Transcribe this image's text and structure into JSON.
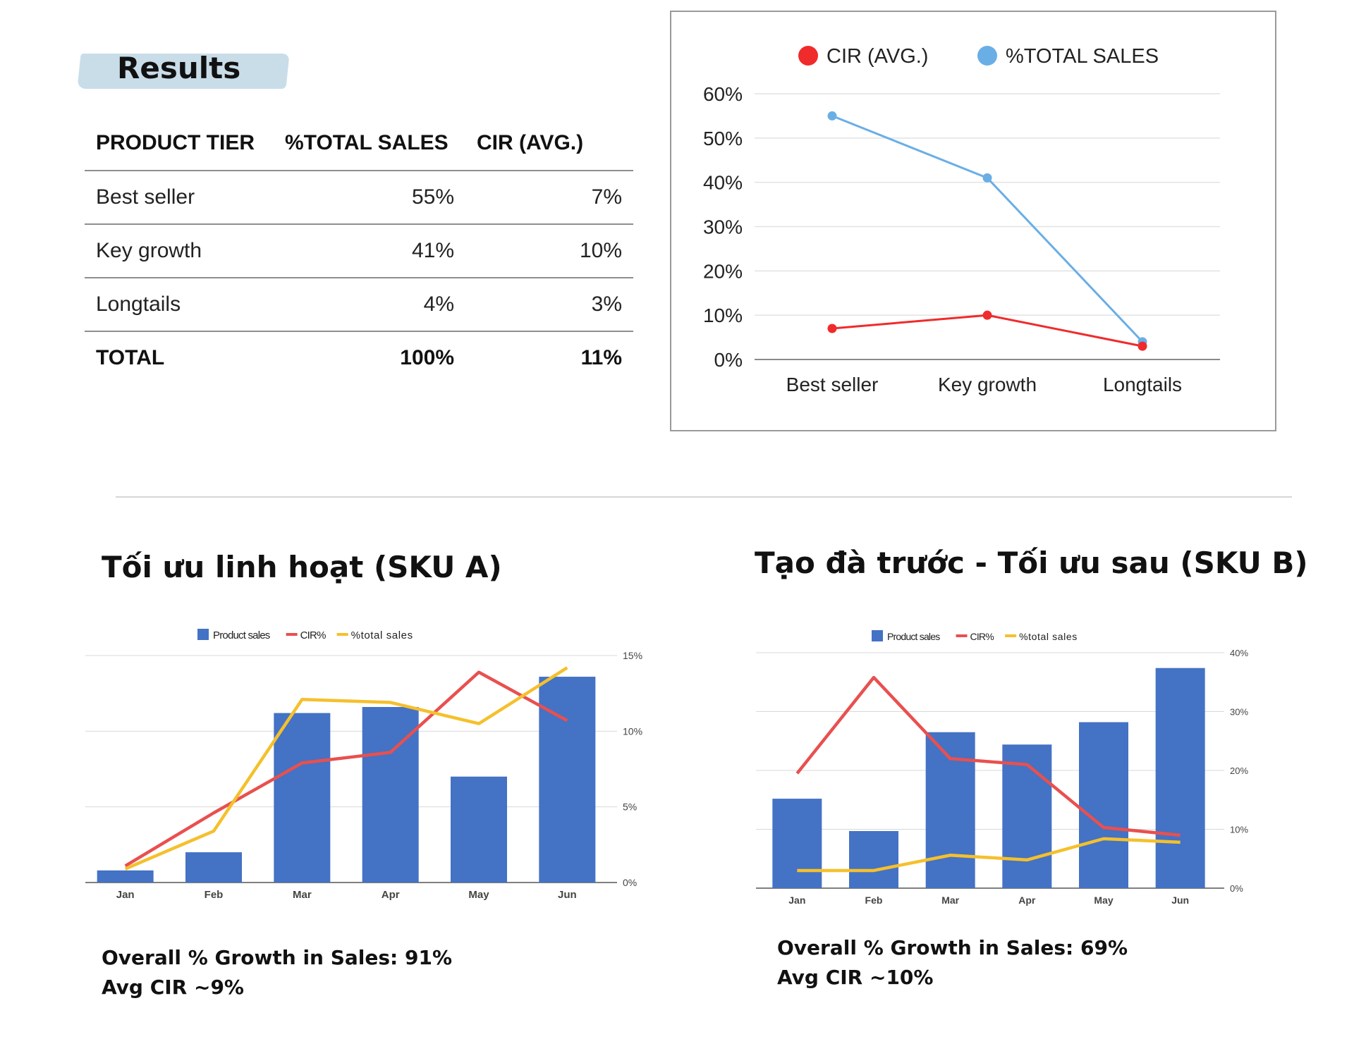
{
  "results": {
    "title": "Results",
    "headers": [
      "PRODUCT TIER",
      "%TOTAL SALES",
      "CIR (AVG.)"
    ],
    "rows": [
      {
        "tier": "Best seller",
        "total_sales": "55%",
        "cir": "7%"
      },
      {
        "tier": "Key growth",
        "total_sales": "41%",
        "cir": "10%"
      },
      {
        "tier": "Longtails",
        "total_sales": "4%",
        "cir": "3%"
      }
    ],
    "total": {
      "tier": "TOTAL",
      "total_sales": "100%",
      "cir": "11%"
    }
  },
  "sku_a": {
    "title": "Tối ưu linh hoạt (SKU A)",
    "growth_text": "Overall % Growth in Sales: 91%",
    "cir_text": "Avg CIR ~9%"
  },
  "sku_b": {
    "title": "Tạo đà trước - Tối ưu sau (SKU B)",
    "growth_text": "Overall % Growth in Sales: 69%",
    "cir_text": "Avg CIR ~10%"
  },
  "colors": {
    "cir_red": "#f02b2b",
    "total_sales_blue": "#6aaee6",
    "bar_blue": "#4472c4",
    "cir_line_red": "#e8504f",
    "total_line_yellow": "#f5c02c"
  },
  "chart_data": [
    {
      "type": "line",
      "categories": [
        "Best seller",
        "Key growth",
        "Longtails"
      ],
      "series": [
        {
          "name": "CIR (AVG.)",
          "values": [
            7,
            10,
            3
          ],
          "color": "#f02b2b"
        },
        {
          "name": "%TOTAL SALES",
          "values": [
            55,
            41,
            4
          ],
          "color": "#6aaee6"
        }
      ],
      "yticks": [
        "0%",
        "10%",
        "20%",
        "30%",
        "40%",
        "50%",
        "60%"
      ],
      "ylim": [
        0,
        60
      ],
      "grid": true,
      "legend": "top"
    },
    {
      "type": "bar",
      "categories": [
        "Jan",
        "Feb",
        "Mar",
        "Apr",
        "May",
        "Jun"
      ],
      "bar_series": {
        "name": "Product sales",
        "values": [
          0.8,
          2.0,
          11.2,
          11.6,
          7.0,
          13.6
        ]
      },
      "line_series": [
        {
          "name": "CIR%",
          "values": [
            1.1,
            4.6,
            7.9,
            8.6,
            13.9,
            10.7
          ],
          "color": "#e8504f"
        },
        {
          "name": "%total sales",
          "values": [
            0.9,
            3.4,
            12.1,
            11.9,
            10.5,
            14.2
          ],
          "color": "#f5c02c"
        }
      ],
      "yticks": [
        "0%",
        "5%",
        "10%",
        "15%"
      ],
      "ylim": [
        0,
        15
      ],
      "grid": true,
      "legend": "top"
    },
    {
      "type": "bar",
      "categories": [
        "Jan",
        "Feb",
        "Mar",
        "Apr",
        "May",
        "Jun"
      ],
      "bar_series": {
        "name": "Product sales",
        "values": [
          15.2,
          9.7,
          26.5,
          24.4,
          28.2,
          37.4
        ]
      },
      "line_series": [
        {
          "name": "CIR%",
          "values": [
            19.5,
            35.8,
            22.0,
            21.0,
            10.3,
            9.0
          ],
          "color": "#e8504f"
        },
        {
          "name": "%total sales",
          "values": [
            3.0,
            3.0,
            5.6,
            4.8,
            8.4,
            7.8
          ],
          "color": "#f5c02c"
        }
      ],
      "yticks": [
        "0%",
        "10%",
        "20%",
        "30%",
        "40%"
      ],
      "ylim": [
        0,
        40
      ],
      "grid": true,
      "legend": "top"
    }
  ]
}
